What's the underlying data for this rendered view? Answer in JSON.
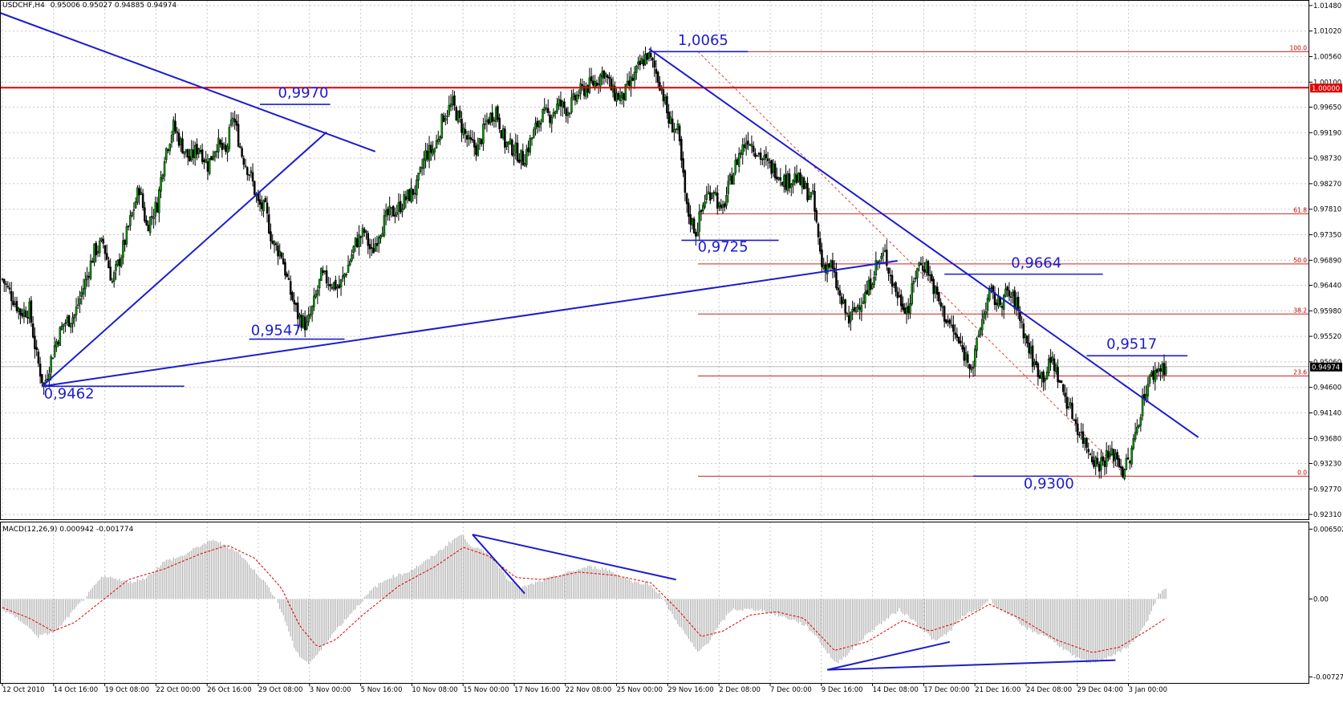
{
  "chart_data": [
    {
      "type": "candlestick",
      "symbol_header": "USDCHF,H4",
      "ohlc_header": "0.95006 0.95027 0.94885 0.94974",
      "y_axis_ticks": [
        "1.01480",
        "1.01020",
        "1.00560",
        "1.00100",
        "0.99650",
        "0.99190",
        "0.98730",
        "0.98270",
        "0.97810",
        "0.97350",
        "0.96890",
        "0.96440",
        "0.95980",
        "0.95520",
        "0.95060",
        "0.94600",
        "0.94140",
        "0.93680",
        "0.93230",
        "0.92770",
        "0.92310"
      ],
      "ylim": [
        0.9221,
        1.0158
      ],
      "current_price_label": "0.94974",
      "horizontal_line_label": "1.00000",
      "x_axis_ticks": [
        "12 Oct 2010",
        "14 Oct 16:00",
        "19 Oct 08:00",
        "22 Oct 00:00",
        "26 Oct 16:00",
        "29 Oct 08:00",
        "3 Nov 00:00",
        "5 Nov 16:00",
        "10 Nov 08:00",
        "15 Nov 00:00",
        "17 Nov 16:00",
        "22 Nov 08:00",
        "25 Nov 00:00",
        "29 Nov 16:00",
        "2 Dec 08:00",
        "7 Dec 00:00",
        "9 Dec 16:00",
        "14 Dec 08:00",
        "17 Dec 00:00",
        "21 Dec 16:00",
        "24 Dec 08:00",
        "29 Dec 04:00",
        "3 Jan 00:00"
      ],
      "fibonacci_levels": [
        "100.0",
        "61.8",
        "50.0",
        "38.2",
        "23.6",
        "0.0"
      ],
      "fibonacci_range": [
        0.93,
        1.0065
      ],
      "annotations": [
        "1,0065",
        "0,9970",
        "0,9725",
        "0,9664",
        "0,9547",
        "0,9517",
        "0,9462",
        "0,9300"
      ],
      "price_path": [
        [
          0,
          0.9655
        ],
        [
          6,
          0.962
        ],
        [
          10,
          0.9595
        ],
        [
          15,
          0.96
        ],
        [
          19,
          0.9515
        ],
        [
          23,
          0.9462
        ],
        [
          29,
          0.9535
        ],
        [
          34,
          0.9575
        ],
        [
          40,
          0.959
        ],
        [
          46,
          0.965
        ],
        [
          51,
          0.9705
        ],
        [
          56,
          0.972
        ],
        [
          61,
          0.965
        ],
        [
          66,
          0.97
        ],
        [
          71,
          0.976
        ],
        [
          76,
          0.982
        ],
        [
          80,
          0.975
        ],
        [
          86,
          0.979
        ],
        [
          90,
          0.988
        ],
        [
          95,
          0.993
        ],
        [
          99,
          0.99
        ],
        [
          104,
          0.987
        ],
        [
          109,
          0.9895
        ],
        [
          114,
          0.986
        ],
        [
          119,
          0.99
        ],
        [
          124,
          0.988
        ],
        [
          128,
          0.995
        ],
        [
          133,
          0.988
        ],
        [
          138,
          0.984
        ],
        [
          142,
          0.979
        ],
        [
          146,
          0.978
        ],
        [
          150,
          0.972
        ],
        [
          155,
          0.97
        ],
        [
          159,
          0.964
        ],
        [
          164,
          0.959
        ],
        [
          169,
          0.957
        ],
        [
          172,
          0.96
        ],
        [
          177,
          0.966
        ],
        [
          182,
          0.965
        ],
        [
          187,
          0.964
        ],
        [
          192,
          0.968
        ],
        [
          196,
          0.972
        ],
        [
          201,
          0.974
        ],
        [
          205,
          0.97
        ],
        [
          209,
          0.974
        ],
        [
          214,
          0.977
        ],
        [
          219,
          0.978
        ],
        [
          224,
          0.98
        ],
        [
          230,
          0.982
        ],
        [
          235,
          0.988
        ],
        [
          240,
          0.989
        ],
        [
          245,
          0.995
        ],
        [
          250,
          0.997
        ],
        [
          255,
          0.993
        ],
        [
          259,
          0.99
        ],
        [
          264,
          0.989
        ],
        [
          269,
          0.994
        ],
        [
          274,
          0.996
        ],
        [
          279,
          0.99
        ],
        [
          284,
          0.989
        ],
        [
          289,
          0.987
        ],
        [
          294,
          0.991
        ],
        [
          299,
          0.995
        ],
        [
          304,
          0.995
        ],
        [
          309,
          0.997
        ],
        [
          314,
          0.996
        ],
        [
          320,
          0.999
        ],
        [
          324,
          1.0
        ],
        [
          329,
          1.001
        ],
        [
          334,
          1.003
        ],
        [
          339,
          0.999
        ],
        [
          344,
          0.998
        ],
        [
          349,
          1.001
        ],
        [
          354,
          1.004
        ],
        [
          358,
          1.006
        ],
        [
          362,
          1.0035
        ],
        [
          366,
          1.0
        ],
        [
          370,
          0.994
        ],
        [
          375,
          0.992
        ],
        [
          380,
          0.978
        ],
        [
          385,
          0.974
        ],
        [
          390,
          0.98
        ],
        [
          395,
          0.982
        ],
        [
          399,
          0.977
        ],
        [
          404,
          0.983
        ],
        [
          409,
          0.988
        ],
        [
          414,
          0.991
        ],
        [
          420,
          0.988
        ],
        [
          425,
          0.986
        ],
        [
          430,
          0.985
        ],
        [
          435,
          0.983
        ],
        [
          440,
          0.984
        ],
        [
          445,
          0.982
        ],
        [
          450,
          0.98
        ],
        [
          455,
          0.968
        ],
        [
          460,
          0.968
        ],
        [
          465,
          0.962
        ],
        [
          470,
          0.958
        ],
        [
          475,
          0.961
        ],
        [
          480,
          0.963
        ],
        [
          485,
          0.968
        ],
        [
          490,
          0.97
        ],
        [
          494,
          0.965
        ],
        [
          498,
          0.962
        ],
        [
          503,
          0.96
        ],
        [
          508,
          0.968
        ],
        [
          513,
          0.968
        ],
        [
          518,
          0.963
        ],
        [
          523,
          0.959
        ],
        [
          528,
          0.956
        ],
        [
          534,
          0.952
        ],
        [
          539,
          0.95
        ],
        [
          543,
          0.957
        ],
        [
          548,
          0.963
        ],
        [
          553,
          0.961
        ],
        [
          558,
          0.963
        ],
        [
          563,
          0.961
        ],
        [
          568,
          0.955
        ],
        [
          573,
          0.95
        ],
        [
          578,
          0.948
        ],
        [
          583,
          0.951
        ],
        [
          588,
          0.946
        ],
        [
          593,
          0.942
        ],
        [
          598,
          0.938
        ],
        [
          603,
          0.935
        ],
        [
          608,
          0.932
        ],
        [
          613,
          0.9335
        ],
        [
          618,
          0.934
        ],
        [
          622,
          0.931
        ],
        [
          626,
          0.933
        ],
        [
          630,
          0.939
        ],
        [
          634,
          0.945
        ],
        [
          638,
          0.948
        ],
        [
          642,
          0.9495
        ],
        [
          646,
          0.9497
        ]
      ]
    },
    {
      "type": "histogram",
      "indicator_header": "MACD(12,26,9) 0.000942 -0.001774",
      "y_axis_ticks": [
        "0.006502",
        "0.00",
        "-0.00727"
      ],
      "ylim": [
        -0.0079,
        0.0072
      ],
      "histogram_path": [
        [
          0,
          -0.001
        ],
        [
          10,
          -0.002
        ],
        [
          20,
          -0.0035
        ],
        [
          30,
          -0.003
        ],
        [
          40,
          -0.001
        ],
        [
          48,
          0.0005
        ],
        [
          55,
          0.002
        ],
        [
          62,
          0.002
        ],
        [
          70,
          0.0015
        ],
        [
          80,
          0.002
        ],
        [
          90,
          0.0035
        ],
        [
          100,
          0.004
        ],
        [
          110,
          0.005
        ],
        [
          118,
          0.0055
        ],
        [
          123,
          0.005
        ],
        [
          130,
          0.0045
        ],
        [
          138,
          0.003
        ],
        [
          146,
          0.0015
        ],
        [
          152,
          0.0
        ],
        [
          158,
          -0.0025
        ],
        [
          163,
          -0.005
        ],
        [
          170,
          -0.006
        ],
        [
          176,
          -0.005
        ],
        [
          182,
          -0.0035
        ],
        [
          190,
          -0.002
        ],
        [
          198,
          -0.0005
        ],
        [
          206,
          0.001
        ],
        [
          215,
          0.002
        ],
        [
          225,
          0.0025
        ],
        [
          235,
          0.0035
        ],
        [
          243,
          0.0045
        ],
        [
          250,
          0.0055
        ],
        [
          255,
          0.006
        ],
        [
          260,
          0.005
        ],
        [
          266,
          0.0045
        ],
        [
          272,
          0.004
        ],
        [
          280,
          0.002
        ],
        [
          288,
          0.001
        ],
        [
          296,
          0.0015
        ],
        [
          305,
          0.002
        ],
        [
          315,
          0.0025
        ],
        [
          325,
          0.003
        ],
        [
          335,
          0.0028
        ],
        [
          345,
          0.002
        ],
        [
          352,
          0.0015
        ],
        [
          358,
          0.0015
        ],
        [
          365,
          0.0005
        ],
        [
          372,
          -0.0015
        ],
        [
          380,
          -0.0035
        ],
        [
          386,
          -0.005
        ],
        [
          392,
          -0.004
        ],
        [
          398,
          -0.0025
        ],
        [
          405,
          -0.001
        ],
        [
          412,
          -0.001
        ],
        [
          420,
          -0.001
        ],
        [
          430,
          -0.0015
        ],
        [
          440,
          -0.002
        ],
        [
          446,
          -0.0025
        ],
        [
          452,
          -0.0035
        ],
        [
          458,
          -0.005
        ],
        [
          463,
          -0.006
        ],
        [
          470,
          -0.005
        ],
        [
          476,
          -0.004
        ],
        [
          482,
          -0.003
        ],
        [
          490,
          -0.002
        ],
        [
          498,
          -0.001
        ],
        [
          506,
          -0.002
        ],
        [
          512,
          -0.003
        ],
        [
          518,
          -0.004
        ],
        [
          526,
          -0.003
        ],
        [
          534,
          -0.0015
        ],
        [
          542,
          -0.001
        ],
        [
          548,
          0.0
        ],
        [
          554,
          -0.001
        ],
        [
          560,
          -0.0015
        ],
        [
          566,
          -0.0025
        ],
        [
          572,
          -0.003
        ],
        [
          580,
          -0.0035
        ],
        [
          588,
          -0.0045
        ],
        [
          596,
          -0.0055
        ],
        [
          604,
          -0.006
        ],
        [
          612,
          -0.0055
        ],
        [
          620,
          -0.005
        ],
        [
          628,
          -0.004
        ],
        [
          636,
          -0.002
        ],
        [
          642,
          0.0005
        ],
        [
          646,
          0.0009
        ]
      ],
      "signal_path": [
        [
          0,
          -0.0008
        ],
        [
          15,
          -0.0018
        ],
        [
          28,
          -0.003
        ],
        [
          40,
          -0.0022
        ],
        [
          55,
          -0.0002
        ],
        [
          70,
          0.0018
        ],
        [
          90,
          0.0028
        ],
        [
          110,
          0.0042
        ],
        [
          125,
          0.005
        ],
        [
          140,
          0.0038
        ],
        [
          155,
          0.001
        ],
        [
          165,
          -0.0025
        ],
        [
          175,
          -0.0045
        ],
        [
          185,
          -0.0038
        ],
        [
          200,
          -0.0015
        ],
        [
          220,
          0.0012
        ],
        [
          240,
          0.003
        ],
        [
          256,
          0.0048
        ],
        [
          270,
          0.004
        ],
        [
          285,
          0.002
        ],
        [
          300,
          0.0018
        ],
        [
          320,
          0.0025
        ],
        [
          340,
          0.0022
        ],
        [
          360,
          0.0015
        ],
        [
          375,
          -0.001
        ],
        [
          388,
          -0.0035
        ],
        [
          400,
          -0.003
        ],
        [
          415,
          -0.0015
        ],
        [
          430,
          -0.0012
        ],
        [
          445,
          -0.0018
        ],
        [
          462,
          -0.0048
        ],
        [
          480,
          -0.004
        ],
        [
          500,
          -0.002
        ],
        [
          515,
          -0.003
        ],
        [
          530,
          -0.0022
        ],
        [
          548,
          -0.0005
        ],
        [
          565,
          -0.0018
        ],
        [
          585,
          -0.0038
        ],
        [
          605,
          -0.005
        ],
        [
          620,
          -0.0045
        ],
        [
          635,
          -0.003
        ],
        [
          646,
          -0.0018
        ]
      ]
    }
  ]
}
